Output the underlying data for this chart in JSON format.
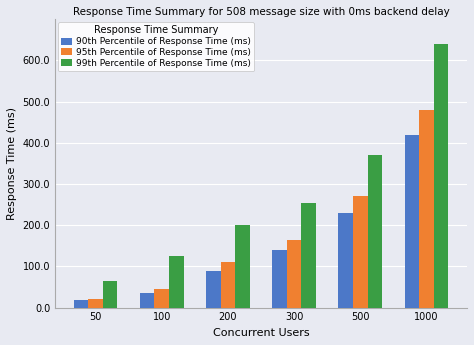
{
  "title": "Response Time Summary for 508 message size with 0ms backend delay",
  "legend_title": "Response Time Summary",
  "xlabel": "Concurrent Users",
  "ylabel": "Response Time (ms)",
  "categories": [
    50,
    100,
    200,
    300,
    500,
    1000
  ],
  "series": [
    {
      "label": "90th Percentile of Response Time (ms)",
      "color": "#4c78c8",
      "values": [
        18,
        35,
        90,
        140,
        230,
        420
      ]
    },
    {
      "label": "95th Percentile of Response Time (ms)",
      "color": "#f08030",
      "values": [
        22,
        45,
        110,
        165,
        270,
        480
      ]
    },
    {
      "label": "99th Percentile of Response Time (ms)",
      "color": "#3a9e44",
      "values": [
        65,
        125,
        200,
        255,
        370,
        640
      ]
    }
  ],
  "ylim": [
    0,
    700
  ],
  "yticks": [
    0.0,
    100.0,
    200.0,
    300.0,
    400.0,
    500.0,
    600.0
  ],
  "background_color": "#e8eaf2",
  "figure_bg": "#e8eaf2",
  "bar_width": 0.22,
  "title_fontsize": 7.5,
  "axis_fontsize": 8,
  "tick_fontsize": 7,
  "legend_fontsize": 6.5,
  "legend_title_fontsize": 7
}
